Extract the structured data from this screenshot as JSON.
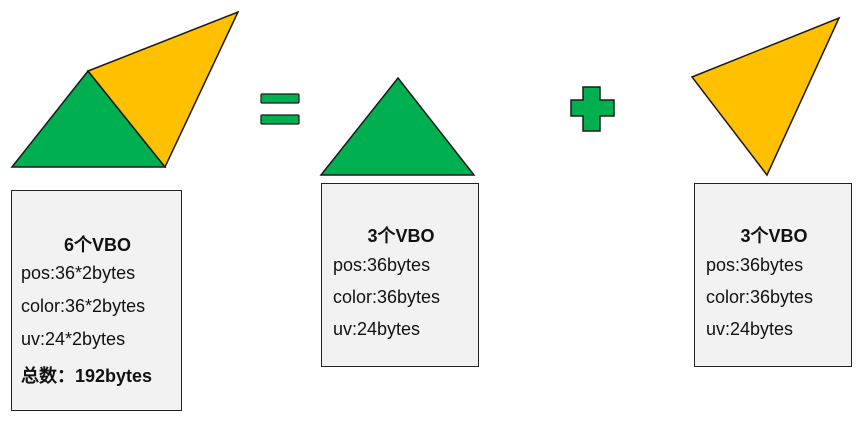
{
  "colors": {
    "green": "#00b050",
    "yellow": "#ffc000",
    "outline": "#1a1a1a",
    "box_fill": "#f2f2f2"
  },
  "left_box": {
    "title": "6个VBO",
    "pos": "pos:36*2bytes",
    "color": "color:36*2bytes",
    "uv": "uv:24*2bytes",
    "total": "总数：192bytes"
  },
  "middle_box": {
    "title": "3个VBO",
    "pos": "pos:36bytes",
    "color": "color:36bytes",
    "uv": "uv:24bytes"
  },
  "right_box": {
    "title": "3个VBO",
    "pos": "pos:36bytes",
    "color": "color:36bytes",
    "uv": "uv:24bytes"
  }
}
